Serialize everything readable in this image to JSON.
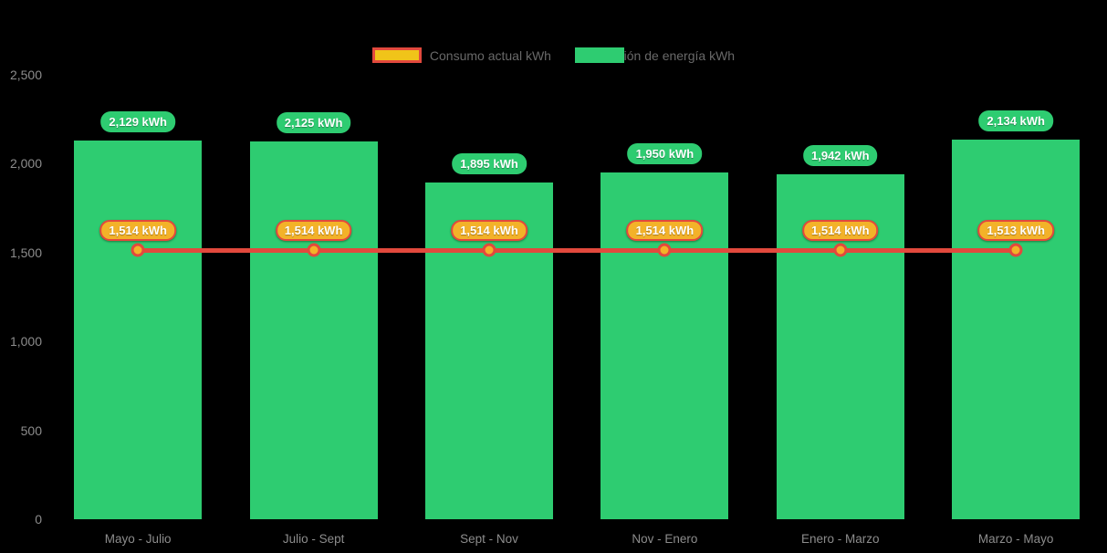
{
  "colors": {
    "background": "#000000",
    "bar_green": "#2ecc71",
    "line_red": "#e2493d",
    "point_gold": "#f3b229",
    "legend_swatch_fill": "#f0c419",
    "axis_text_gray": "#8c8c8c",
    "legend_text_gray": "#696969",
    "badge_text": "#ffffff"
  },
  "legend": {
    "position": "top",
    "items": [
      {
        "label": "Consumo actual kWh",
        "swatch": "gold-fill-red-border"
      },
      {
        "label": "Generación de energía kWh",
        "swatch": "green-fill"
      }
    ]
  },
  "chart_data": {
    "type": "bar",
    "categories": [
      "Mayo - Julio",
      "Julio - Sept",
      "Sept - Nov",
      "Nov - Enero",
      "Enero - Marzo",
      "Marzo - Mayo"
    ],
    "series": [
      {
        "name": "Consumo actual kWh",
        "type": "line",
        "color": "#e2493d",
        "point_color": "#f3b229",
        "values": [
          1514,
          1514,
          1514,
          1514,
          1514,
          1513
        ],
        "point_labels": [
          "1,514 kWh",
          "1,514 kWh",
          "1,514 kWh",
          "1,514 kWh",
          "1,514 kWh",
          "1,513 kWh"
        ]
      },
      {
        "name": "Generación de energía kWh",
        "type": "bar",
        "color": "#2ecc71",
        "values": [
          2129,
          2125,
          1895,
          1950,
          1942,
          2134
        ],
        "point_labels": [
          "2,129 kWh",
          "2,125 kWh",
          "1,895 kWh",
          "1,950 kWh",
          "1,942 kWh",
          "2,134 kWh"
        ]
      }
    ],
    "xlabel": "",
    "ylabel": "",
    "ylim": [
      0,
      2500
    ],
    "y_tick_values": [
      0,
      500,
      1000,
      1500,
      2000,
      2500
    ],
    "y_tick_labels": [
      "0",
      "500",
      "1,000",
      "1,500",
      "2,000",
      "2,500"
    ],
    "grid": false,
    "legend_position": "top"
  }
}
